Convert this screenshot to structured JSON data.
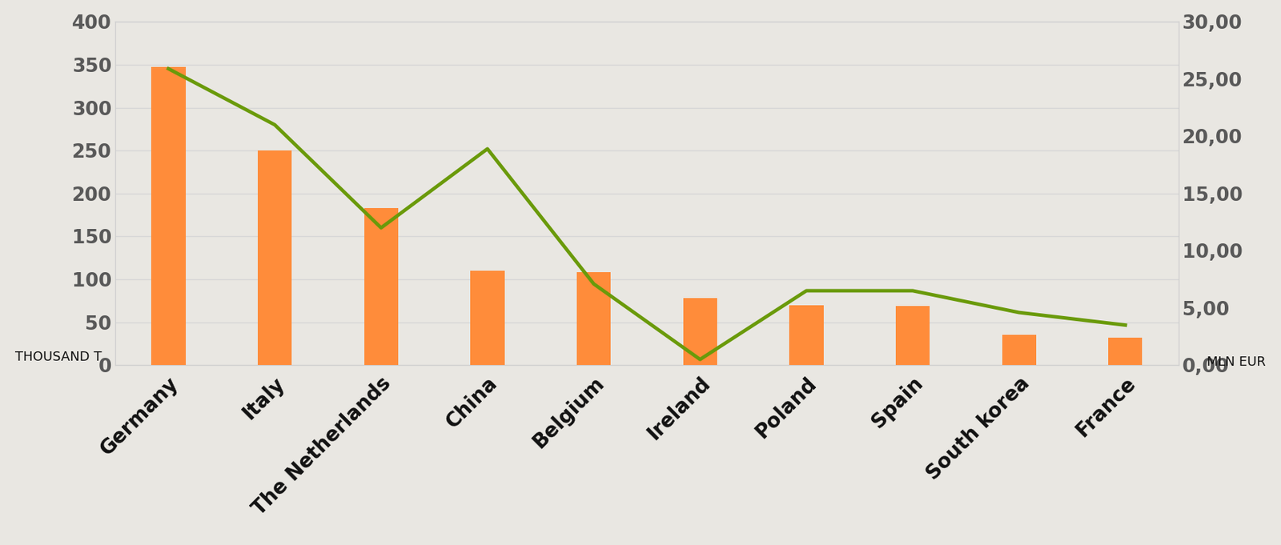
{
  "chart_data": {
    "type": "bar",
    "categories": [
      "Germany",
      "Italy",
      "The Netherlands",
      "China",
      "Belgium",
      "Ireland",
      "Poland",
      "Spain",
      "South korea",
      "France"
    ],
    "y_label": "THOUSAND T",
    "y2_label": "MLN EUR",
    "series": [
      {
        "type": "bar",
        "color": "#ff8c3a",
        "values": [
          347,
          250,
          183,
          110,
          108,
          78,
          70,
          69,
          35,
          32
        ]
      },
      {
        "type": "line",
        "axis": "y2",
        "color": "#6a9a0a",
        "line_style": "solid",
        "values": [
          25.9,
          21.0,
          12.0,
          18.9,
          7.1,
          0.5,
          6.5,
          6.5,
          4.6,
          3.5
        ]
      }
    ],
    "ylim": [
      0,
      400
    ],
    "yticks": [
      0,
      50,
      100,
      150,
      200,
      250,
      300,
      350,
      400
    ],
    "y2lim": [
      0,
      30
    ],
    "y2ticks": [
      {
        "value": 0,
        "label": "0,00"
      },
      {
        "value": 5,
        "label": "5,00"
      },
      {
        "value": 10,
        "label": "10,00"
      },
      {
        "value": 15,
        "label": "15,00"
      },
      {
        "value": 20,
        "label": "20,00"
      },
      {
        "value": 25,
        "label": "25,00"
      },
      {
        "value": 30,
        "label": "30,00"
      }
    ],
    "grid": true
  }
}
